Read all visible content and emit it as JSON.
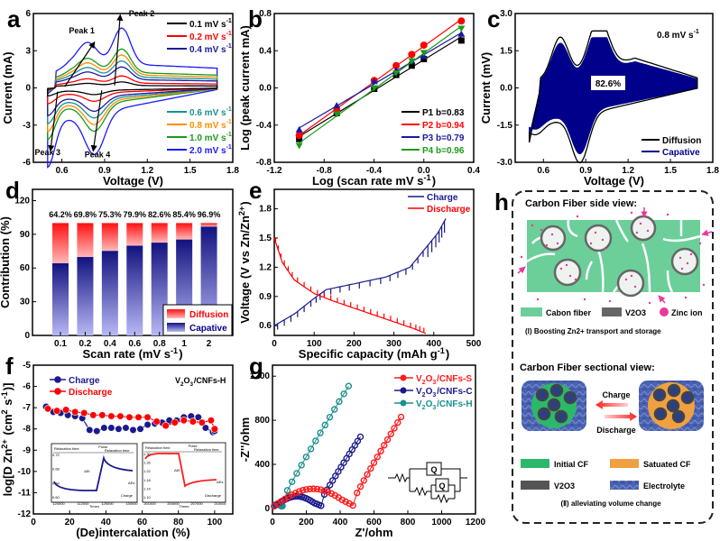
{
  "figure": {
    "panel_letters": [
      "a",
      "b",
      "c",
      "d",
      "e",
      "f",
      "g",
      "h"
    ]
  },
  "chart_data": [
    {
      "id": "a",
      "type": "line",
      "title": "",
      "xlabel": "Voltage (V)",
      "ylabel": "Current (mA)",
      "xlim": [
        0.4,
        1.8
      ],
      "ylim": [
        -6,
        6
      ],
      "xticks": [
        "0.6",
        "0.9",
        "1.2",
        "1.5",
        "1.8"
      ],
      "yticks": [
        "-6",
        "-3",
        "0",
        "3",
        "6"
      ],
      "legend_top": [
        {
          "name": "0.1 mV s-1",
          "color": "#000000"
        },
        {
          "name": "0.2 mV s-1",
          "color": "#ff0000"
        },
        {
          "name": "0.4 mV s-1",
          "color": "#1a1aa0"
        }
      ],
      "legend_bottom": [
        {
          "name": "0.6 mV s-1",
          "color": "#1a9090"
        },
        {
          "name": "0.8 mV s-1",
          "color": "#ff8c00"
        },
        {
          "name": "1.0 mV s-1",
          "color": "#1a9a1a"
        },
        {
          "name": "2.0 mV s-1",
          "color": "#1a1aff"
        }
      ],
      "series_peak_scale": [
        0.1,
        0.2,
        0.35,
        0.45,
        0.55,
        0.65,
        1.0
      ],
      "series_colors": [
        "#000000",
        "#ff0000",
        "#1a1aa0",
        "#1a9090",
        "#ff8c00",
        "#1a9a1a",
        "#1a1aff"
      ],
      "annotations": [
        "Peak 1",
        "Peak 2",
        "Peak 3",
        "Peak 4"
      ],
      "peak_values_2mV": {
        "peak1": [
          0.8,
          3.2
        ],
        "peak2": [
          1.02,
          5.3
        ],
        "peak3": [
          0.5,
          -4.4
        ],
        "peak4": [
          0.83,
          -4.5
        ]
      }
    },
    {
      "id": "b",
      "type": "scatter",
      "xlabel": "Log (scan rate mV s-1)",
      "ylabel": "Log (peak current mA)",
      "xlim": [
        -1.2,
        0.4
      ],
      "ylim": [
        -0.8,
        0.8
      ],
      "xticks": [
        "-1.2",
        "-0.8",
        "-0.4",
        "0.0",
        "0.4"
      ],
      "yticks": [
        "-0.8",
        "-0.4",
        "0.0",
        "0.4",
        "0.8"
      ],
      "x": [
        -1.0,
        -0.699,
        -0.398,
        -0.222,
        -0.097,
        0.0,
        0.301
      ],
      "series": [
        {
          "name": "P1 b=0.83",
          "color": "#000000",
          "marker": "square",
          "values": [
            -0.55,
            -0.27,
            -0.01,
            0.14,
            0.24,
            0.31,
            0.51
          ]
        },
        {
          "name": "P2 b=0.94",
          "color": "#ff0000",
          "marker": "circle",
          "values": [
            -0.51,
            -0.24,
            0.08,
            0.24,
            0.36,
            0.46,
            0.72
          ]
        },
        {
          "name": "P3 b=0.79",
          "color": "#1a1aa0",
          "marker": "triangle-up",
          "values": [
            -0.45,
            -0.19,
            0.07,
            0.19,
            0.29,
            0.34,
            0.58
          ]
        },
        {
          "name": "P4 b=0.96",
          "color": "#1a9a1a",
          "marker": "triangle-down",
          "values": [
            -0.62,
            -0.28,
            0.0,
            0.16,
            0.29,
            0.38,
            0.64
          ]
        }
      ]
    },
    {
      "id": "c",
      "type": "area",
      "xlabel": "Voltage (V)",
      "ylabel": "Current (mV)",
      "xlim": [
        0.4,
        1.8
      ],
      "ylim": [
        -3.0,
        3.0
      ],
      "xticks": [
        "0.6",
        "0.9",
        "1.2",
        "1.5",
        "1.8"
      ],
      "yticks": [
        "-3.0",
        "-1.5",
        "0.0",
        "1.5",
        "3.0"
      ],
      "annotation_rate": "0.8 mV s-1",
      "annotation_percent": "82.6%",
      "legend": [
        {
          "name": "Diffusion",
          "color": "#000000"
        },
        {
          "name": "Capative",
          "color": "#00008b"
        }
      ],
      "capacitive_fraction": 0.826
    },
    {
      "id": "d",
      "type": "bar",
      "xlabel": "Scan rate (mV s-1)",
      "ylabel": "Contribution (%)",
      "ylim": [
        0,
        130
      ],
      "yticks": [
        "0",
        "30",
        "60",
        "90",
        "120"
      ],
      "categories": [
        "0.1",
        "0.2",
        "0.4",
        "0.6",
        "0.8",
        "1",
        "2"
      ],
      "series": [
        {
          "name": "Capative",
          "color": "#1a1a8c",
          "values": [
            64.2,
            69.8,
            75.3,
            79.9,
            82.6,
            85.4,
            96.9
          ]
        },
        {
          "name": "Diffusion",
          "color": "#ff1a1a",
          "values": [
            35.8,
            30.2,
            24.7,
            20.1,
            17.4,
            14.6,
            3.1
          ]
        }
      ],
      "data_labels": [
        "64.2%",
        "69.8%",
        "75.3%",
        "79.9%",
        "82.6%",
        "85.4%",
        "96.9%"
      ],
      "legend": [
        {
          "name": "Diffusion",
          "color": "#ff0000"
        },
        {
          "name": "Capative",
          "color": "#00008b"
        }
      ]
    },
    {
      "id": "e",
      "type": "line",
      "xlabel": "Specific capacity (mAh g-1)",
      "ylabel": "Voltage (V vs Zn/Zn2+)",
      "xlim": [
        0,
        500
      ],
      "ylim": [
        0.5,
        2.0
      ],
      "xticks": [
        "0",
        "100",
        "200",
        "300",
        "400",
        "500"
      ],
      "yticks": [
        "0.6",
        "0.9",
        "1.2",
        "1.5",
        "1.8"
      ],
      "series": [
        {
          "name": "Charge",
          "color": "#1a1a8c",
          "x": [
            0,
            50,
            100,
            130,
            200,
            280,
            340,
            380,
            410,
            430
          ],
          "y": [
            0.6,
            0.72,
            0.88,
            0.97,
            1.03,
            1.1,
            1.2,
            1.4,
            1.55,
            1.7
          ]
        },
        {
          "name": "Discharge",
          "color": "#ff0000",
          "x": [
            0,
            20,
            50,
            100,
            150,
            200,
            250,
            300,
            350,
            380
          ],
          "y": [
            1.5,
            1.25,
            1.07,
            0.93,
            0.85,
            0.78,
            0.71,
            0.64,
            0.57,
            0.52
          ]
        }
      ]
    },
    {
      "id": "f",
      "type": "line",
      "xlabel": "(De)intercalation (%)",
      "ylabel": "log[D Zn2+ (cm2 s-1)]",
      "xlim": [
        0,
        110
      ],
      "ylim": [
        -12,
        -5
      ],
      "xticks": [
        "0",
        "20",
        "40",
        "60",
        "80",
        "100"
      ],
      "yticks": [
        "-12",
        "-11",
        "-10",
        "-9",
        "-8",
        "-7",
        "-6",
        "-5"
      ],
      "annotation": "V2O3/CNFs-H",
      "series": [
        {
          "name": "Charge",
          "color": "#1a1a8c",
          "x": [
            7,
            11,
            15,
            19,
            23,
            27,
            31,
            35,
            39,
            43,
            47,
            51,
            55,
            59,
            63,
            67,
            71,
            75,
            79,
            83,
            87,
            91,
            95,
            99,
            100
          ],
          "y": [
            -6.95,
            -7.2,
            -7.25,
            -7.35,
            -7.4,
            -7.5,
            -8.05,
            -8.1,
            -7.95,
            -7.95,
            -8.0,
            -7.95,
            -8.05,
            -8.0,
            -7.8,
            -7.75,
            -7.7,
            -7.6,
            -7.6,
            -7.45,
            -7.4,
            -7.45,
            -7.95,
            -8.15,
            -8.1
          ]
        },
        {
          "name": "Discharge",
          "color": "#ff0000",
          "x": [
            8,
            13,
            18,
            23,
            28,
            33,
            38,
            43,
            48,
            53,
            58,
            63,
            68,
            73,
            78,
            83,
            88,
            93,
            98,
            100
          ],
          "y": [
            -7.05,
            -7.15,
            -7.1,
            -7.2,
            -7.25,
            -7.35,
            -7.35,
            -7.4,
            -7.4,
            -7.45,
            -7.45,
            -7.45,
            -7.65,
            -7.85,
            -7.7,
            -7.6,
            -7.65,
            -7.7,
            -7.6,
            -8.0
          ]
        }
      ],
      "insets": [
        {
          "labels": [
            "Relaxation time",
            "Pulse",
            "time",
            "Relaxation time",
            "ΔEt",
            "ΔEs",
            "Charge",
            "Times",
            "Potential (V vs Zn/Zn2+)"
          ],
          "x_ticks": [
            "120000",
            "112000",
            "125000",
            "130000"
          ],
          "y_ticks": [
            "0.72",
            "0.68",
            "0.64",
            "0.60"
          ]
        },
        {
          "labels": [
            "Relaxation time",
            "Pulse",
            "time",
            "Relaxation time",
            "ΔEt",
            "ΔEs",
            "Discharge",
            "Times",
            "Potential (V vs Zn/Zn2+)"
          ],
          "x_ticks": [
            "201000",
            "204000",
            "207000",
            "210000"
          ],
          "y_ticks": [
            "1.30",
            "1.26",
            "1.22",
            "1.18",
            "1.14",
            "1.10"
          ]
        }
      ]
    },
    {
      "id": "g",
      "type": "scatter",
      "xlabel": "Z'/ohm",
      "ylabel": "-Z''/ohm",
      "xlim": [
        0,
        1200
      ],
      "ylim": [
        -50,
        1300
      ],
      "xticks": [
        "0",
        "200",
        "400",
        "600",
        "800",
        "1000",
        "1200"
      ],
      "yticks": [
        "0",
        "400",
        "800",
        "1200"
      ],
      "series": [
        {
          "name": "V2O3/CNFs-S",
          "color": "#ff1a1a",
          "semicircle_end": 480,
          "semicircle_peak": 160,
          "tail_end": [
            760,
            830
          ]
        },
        {
          "name": "V2O3/CNFs-C",
          "color": "#1a1a8c",
          "semicircle_end": 290,
          "semicircle_peak": 95,
          "tail_end": [
            520,
            650
          ]
        },
        {
          "name": "V2O3/CNFs-H",
          "color": "#1a9090",
          "semicircle_end": 60,
          "semicircle_peak": 30,
          "tail_end": [
            450,
            1110
          ]
        }
      ],
      "circuit_labels": [
        "Q",
        "Q"
      ]
    }
  ],
  "schematic_h": {
    "side_view_title": "Carbon Fiber side view:",
    "legend1": [
      {
        "label": "Cabon fiber",
        "color": "#6ccf9a"
      },
      {
        "label": "V2O3",
        "color": "#666666"
      },
      {
        "label": "Zinc ion",
        "color": "#e8399a"
      }
    ],
    "caption1": "(Ⅰ) Boosting  Zn2+ transport and storage",
    "sectional_title": "Carbon Fiber sectional view:",
    "arrow_top": "Charge",
    "arrow_bottom": "Discharge",
    "legend2": [
      {
        "label": "Initial CF",
        "color": "#2cb86a"
      },
      {
        "label": "Satuated CF",
        "color": "#f0a040"
      },
      {
        "label": "V2O3",
        "color": "#555555"
      },
      {
        "label": "Electrolyte",
        "color": "#4a62b0"
      }
    ],
    "caption2": "(Ⅱ) alleviating volume change"
  }
}
